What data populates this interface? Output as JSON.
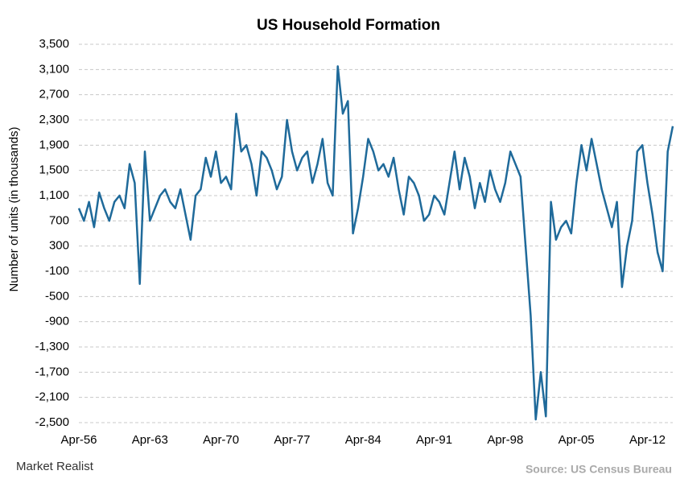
{
  "chart_data": {
    "type": "line",
    "title": "US Household  Formation",
    "y_label": "Number of units (in thousands)",
    "source": "Source: US Census Bureau",
    "brand": "Market Realist",
    "categories": [
      "Apr-56",
      null,
      null,
      null,
      null,
      null,
      null,
      null,
      null,
      null,
      null,
      null,
      null,
      null,
      "Apr-63",
      null,
      null,
      null,
      null,
      null,
      null,
      null,
      null,
      null,
      null,
      null,
      null,
      null,
      "Apr-70",
      null,
      null,
      null,
      null,
      null,
      null,
      null,
      null,
      null,
      null,
      null,
      null,
      null,
      "Apr-77",
      null,
      null,
      null,
      null,
      null,
      null,
      null,
      null,
      null,
      null,
      null,
      null,
      null,
      "Apr-84",
      null,
      null,
      null,
      null,
      null,
      null,
      null,
      null,
      null,
      null,
      null,
      null,
      null,
      "Apr-91",
      null,
      null,
      null,
      null,
      null,
      null,
      null,
      null,
      null,
      null,
      null,
      null,
      null,
      "Apr-98",
      null,
      null,
      null,
      null,
      null,
      null,
      null,
      null,
      null,
      null,
      null,
      null,
      null,
      "Apr-05",
      null,
      null,
      null,
      null,
      null,
      null,
      null,
      null,
      null,
      null,
      null,
      null,
      null,
      "Apr-12",
      null,
      null,
      null,
      null,
      null
    ],
    "series": [
      {
        "name": "Household formation",
        "color": "#1f6a9a",
        "values": [
          900,
          700,
          1000,
          600,
          1150,
          900,
          700,
          1000,
          1100,
          900,
          1600,
          1300,
          -300,
          1800,
          700,
          900,
          1100,
          1200,
          1000,
          900,
          1200,
          800,
          400,
          1100,
          1200,
          1700,
          1400,
          1800,
          1300,
          1400,
          1200,
          2400,
          1800,
          1900,
          1600,
          1100,
          1800,
          1700,
          1500,
          1200,
          1400,
          2300,
          1800,
          1500,
          1700,
          1800,
          1300,
          1600,
          2000,
          1300,
          1100,
          3150,
          2400,
          2600,
          500,
          900,
          1400,
          2000,
          1800,
          1500,
          1600,
          1400,
          1700,
          1200,
          800,
          1400,
          1300,
          1100,
          700,
          800,
          1100,
          1000,
          800,
          1300,
          1800,
          1200,
          1700,
          1400,
          900,
          1300,
          1000,
          1500,
          1200,
          1000,
          1300,
          1800,
          1600,
          1400,
          300,
          -800,
          -2450,
          -1700,
          -2400,
          1000,
          400,
          600,
          700,
          500,
          1300,
          1900,
          1500,
          2000,
          1600,
          1200,
          900,
          600,
          1000,
          -350,
          300,
          700,
          1800,
          1900,
          1300,
          800,
          200,
          -100,
          1800,
          2200
        ]
      }
    ],
    "ylim": [
      -2500,
      3500
    ],
    "yticks": [
      {
        "value": 3500,
        "label": "3,500"
      },
      {
        "value": 3100,
        "label": "3,100"
      },
      {
        "value": 2700,
        "label": "2,700"
      },
      {
        "value": 2300,
        "label": "2,300"
      },
      {
        "value": 1900,
        "label": "1,900"
      },
      {
        "value": 1500,
        "label": "1,500"
      },
      {
        "value": 1100,
        "label": "1,100"
      },
      700,
      300,
      -100,
      -500,
      -900,
      {
        "value": -1300,
        "label": "-1,300"
      },
      {
        "value": -1700,
        "label": "-1,700"
      },
      {
        "value": -2100,
        "label": "-2,100"
      },
      {
        "value": -2500,
        "label": "-2,500"
      }
    ],
    "grid": true
  }
}
